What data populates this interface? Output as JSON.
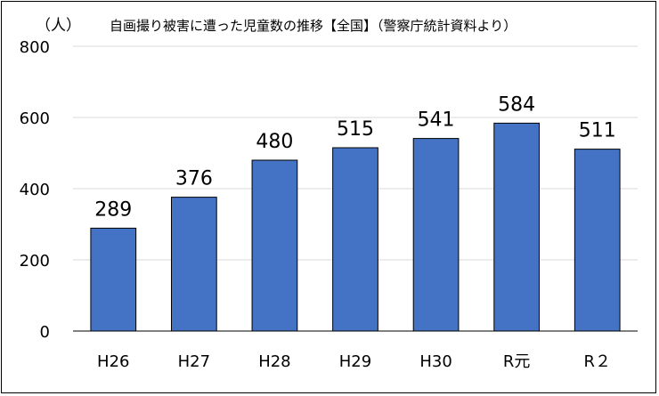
{
  "chart_data": {
    "type": "bar",
    "title": "自画撮り被害に遭った児童数の推移【全国】（警察庁統計資料より）",
    "unit_label": "（人）",
    "categories": [
      "H26",
      "H27",
      "H28",
      "H29",
      "H30",
      "R元",
      "R２"
    ],
    "values": [
      289,
      376,
      480,
      515,
      541,
      584,
      511
    ],
    "data_labels": [
      "289",
      "376",
      "480",
      "515",
      "541",
      "584",
      "511"
    ],
    "yticks": [
      "0",
      "200",
      "400",
      "600",
      "800"
    ],
    "ylim": [
      0,
      800
    ],
    "grid": true,
    "legend": "none",
    "colors": {
      "bar": "#4472C4",
      "bar_edge": "#000000",
      "grid": "#D9D9D9",
      "axis": "#000000"
    }
  }
}
